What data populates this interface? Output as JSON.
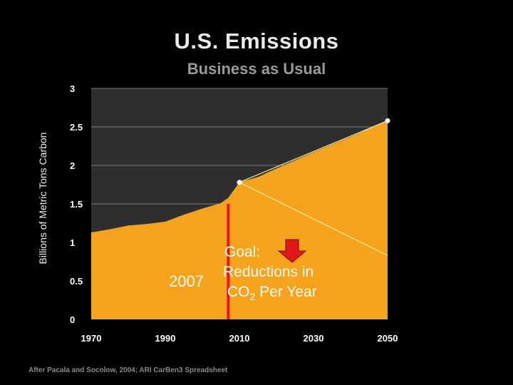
{
  "slide": {
    "title": "U.S. Emissions",
    "subtitle": "Business as Usual",
    "source": "After Pacala and Socolow, 2004; ARI CarBen3 Spreadsheet"
  },
  "annotations": {
    "year_marker": "2007",
    "goal_title": "Goal:",
    "goal_line2": "Reductions in",
    "goal_line3_pre": "CO",
    "goal_line3_sub": "2",
    "goal_line3_post": " Per Year"
  },
  "colors": {
    "area": "#f5a31c",
    "plot_bg": "#2e2e2e",
    "grid": "#7a7a7a",
    "marker_line": "#e0171b",
    "goal_arrow": "#e0171b",
    "reduction_line": "#f3f0a0"
  },
  "chart_data": {
    "type": "area",
    "title": "U.S. Emissions",
    "subtitle": "Business as Usual",
    "xlabel": "",
    "ylabel": "Billions of Metric Tons Carbon",
    "xlim": [
      1970,
      2050
    ],
    "ylim": [
      0,
      3
    ],
    "x_ticks": [
      1970,
      1990,
      2010,
      2030,
      2050
    ],
    "y_ticks": [
      0,
      0.5,
      1,
      1.5,
      2,
      2.5,
      3
    ],
    "y_tick_labels": [
      "0",
      "0.5",
      "1",
      "1.5",
      "2",
      "2.5",
      "3"
    ],
    "grid": true,
    "series": [
      {
        "x": [
          1970,
          1975,
          1980,
          1985,
          1990,
          1995,
          2000,
          2005,
          2007,
          2010,
          2015,
          2020,
          2030,
          2040,
          2050
        ],
        "values": [
          1.13,
          1.17,
          1.22,
          1.24,
          1.27,
          1.36,
          1.44,
          1.51,
          1.58,
          1.78,
          1.85,
          1.96,
          2.17,
          2.37,
          2.58
        ]
      }
    ],
    "highlight_points": [
      {
        "x": 2010,
        "y": 1.78
      },
      {
        "x": 2050,
        "y": 2.58
      }
    ],
    "reduction_lines": [
      {
        "from": {
          "x": 2010,
          "y": 1.78
        },
        "to": {
          "x": 2050,
          "y": 2.58
        }
      },
      {
        "from": {
          "x": 2010,
          "y": 1.78
        },
        "to": {
          "x": 2050,
          "y": 0.83
        }
      }
    ],
    "vertical_marker": {
      "x": 2007,
      "y_from": 0,
      "y_to": 1.5
    }
  }
}
